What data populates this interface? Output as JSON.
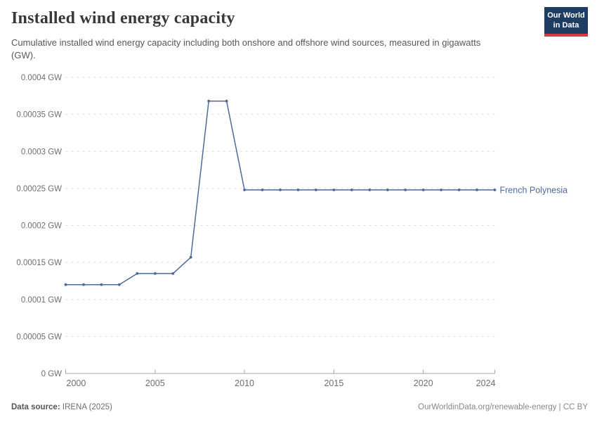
{
  "header": {
    "title": "Installed wind energy capacity",
    "subtitle": "Cumulative installed wind energy capacity including both onshore and offshore wind sources, measured in gigawatts (GW).",
    "logo": {
      "line1": "Our World",
      "line2": "in Data",
      "bg_color": "#1d3d63",
      "bar_color": "#d13d44",
      "text_color": "#ffffff"
    }
  },
  "chart_data": {
    "type": "line",
    "title": "Installed wind energy capacity",
    "xlabel": "",
    "ylabel": "",
    "x": [
      2000,
      2001,
      2002,
      2003,
      2004,
      2005,
      2006,
      2007,
      2008,
      2009,
      2010,
      2011,
      2012,
      2013,
      2014,
      2015,
      2016,
      2017,
      2018,
      2019,
      2020,
      2021,
      2022,
      2023,
      2024
    ],
    "series": [
      {
        "name": "French Polynesia",
        "color": "#4C6A9C",
        "values": [
          0.00012,
          0.00012,
          0.00012,
          0.00012,
          0.000135,
          0.000135,
          0.000135,
          0.000157,
          0.000368,
          0.000368,
          0.000248,
          0.000248,
          0.000248,
          0.000248,
          0.000248,
          0.000248,
          0.000248,
          0.000248,
          0.000248,
          0.000248,
          0.000248,
          0.000248,
          0.000248,
          0.000248,
          0.000248
        ]
      }
    ],
    "ylim": [
      0,
      0.0004
    ],
    "y_ticks": [
      0,
      5e-05,
      0.0001,
      0.00015,
      0.0002,
      0.00025,
      0.0003,
      0.00035,
      0.0004
    ],
    "y_tick_labels": [
      "0 GW",
      "0.00005 GW",
      "0.0001 GW",
      "0.00015 GW",
      "0.0002 GW",
      "0.00025 GW",
      "0.0003 GW",
      "0.00035 GW",
      "0.0004 GW"
    ],
    "x_ticks": [
      2000,
      2005,
      2010,
      2015,
      2020,
      2024
    ],
    "x_tick_labels": [
      "2000",
      "2005",
      "2010",
      "2015",
      "2020",
      "2024"
    ],
    "grid": true,
    "legend_position": "end-of-line"
  },
  "footer": {
    "source_label": "Data source:",
    "source_value": "IRENA (2025)",
    "link": "OurWorldinData.org/renewable-energy | CC BY"
  }
}
